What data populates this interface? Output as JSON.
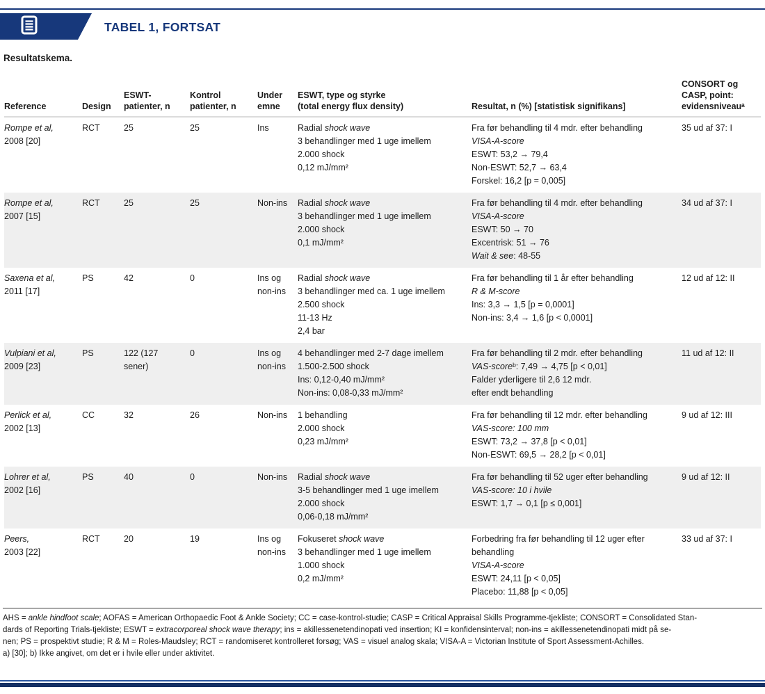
{
  "masthead": {
    "badge_label": "TABEL 1, FORTSAT",
    "badge_icon": "document-lines-icon",
    "subtitle": "Resultatskema."
  },
  "colors": {
    "brand_navy": "#17387b",
    "row_stripe": "#efefef",
    "text": "#1c1c1c"
  },
  "table": {
    "columns": [
      {
        "key": "reference",
        "label": "Reference"
      },
      {
        "key": "design",
        "label": "Design"
      },
      {
        "key": "eswt_n",
        "label": "ESWT-\npatienter, n"
      },
      {
        "key": "kontrol_n",
        "label": "Kontrol\npatienter, n"
      },
      {
        "key": "emne",
        "label": "Under\nemne"
      },
      {
        "key": "type",
        "label": "ESWT, type og styrke\n(total energy flux density)"
      },
      {
        "key": "resultat",
        "label": "Resultat, n (%) [statistisk signifikans]"
      },
      {
        "key": "consort",
        "label": "CONSORT og\nCASP, point:\nevidensniveauᵃ"
      }
    ],
    "rows": [
      {
        "reference": [
          [
            {
              "i": "Rompe et al,"
            }
          ],
          [
            "2008 [20]"
          ]
        ],
        "design": [
          [
            "RCT"
          ]
        ],
        "eswt_n": [
          [
            "25"
          ]
        ],
        "kontrol_n": [
          [
            "25"
          ]
        ],
        "emne": [
          [
            "Ins"
          ]
        ],
        "type": [
          [
            "Radial ",
            {
              "i": "shock wave"
            }
          ],
          [
            "3 behandlinger med 1 uge imellem"
          ],
          [
            "2.000 shock"
          ],
          [
            "0,12 mJ/mm²"
          ]
        ],
        "resultat": [
          [
            "Fra før behandling til 4 mdr. efter behandling"
          ],
          [
            {
              "i": "VISA-A-score"
            }
          ],
          [
            "ESWT: 53,2 → 79,4"
          ],
          [
            "Non-ESWT: 52,7 → 63,4"
          ],
          [
            "Forskel: 16,2 [p = 0,005]"
          ]
        ],
        "consort": [
          [
            "35 ud af 37: I"
          ]
        ]
      },
      {
        "reference": [
          [
            {
              "i": "Rompe et al,"
            }
          ],
          [
            "2007 [15]"
          ]
        ],
        "design": [
          [
            "RCT"
          ]
        ],
        "eswt_n": [
          [
            "25"
          ]
        ],
        "kontrol_n": [
          [
            "25"
          ]
        ],
        "emne": [
          [
            "Non-ins"
          ]
        ],
        "type": [
          [
            "Radial ",
            {
              "i": "shock wave"
            }
          ],
          [
            "3 behandlinger med 1 uge imellem"
          ],
          [
            "2.000 shock"
          ],
          [
            "0,1 mJ/mm²"
          ]
        ],
        "resultat": [
          [
            "Fra før behandling til 4 mdr. efter behandling"
          ],
          [
            {
              "i": "VISA-A-score"
            }
          ],
          [
            "ESWT: 50 → 70"
          ],
          [
            "Excentrisk: 51 → 76"
          ],
          [
            {
              "i": "Wait & see"
            },
            ": 48-55"
          ]
        ],
        "consort": [
          [
            "34 ud af 37: I"
          ]
        ]
      },
      {
        "reference": [
          [
            {
              "i": "Saxena et al,"
            }
          ],
          [
            "2011 [17]"
          ]
        ],
        "design": [
          [
            "PS"
          ]
        ],
        "eswt_n": [
          [
            "42"
          ]
        ],
        "kontrol_n": [
          [
            "0"
          ]
        ],
        "emne": [
          [
            "Ins og"
          ],
          [
            "non-ins"
          ]
        ],
        "type": [
          [
            "Radial ",
            {
              "i": "shock wave"
            }
          ],
          [
            "3 behandlinger med ca. 1 uge imellem"
          ],
          [
            "2.500 shock"
          ],
          [
            "11-13 Hz"
          ],
          [
            "2,4 bar"
          ]
        ],
        "resultat": [
          [
            "Fra før behandling til 1 år efter behandling"
          ],
          [
            {
              "i": "R & M-score"
            }
          ],
          [
            "Ins: 3,3 → 1,5 [p = 0,0001]"
          ],
          [
            "Non-ins: 3,4 → 1,6 [p < 0,0001]"
          ]
        ],
        "consort": [
          [
            "12 ud af 12: II"
          ]
        ]
      },
      {
        "reference": [
          [
            {
              "i": "Vulpiani et al,"
            }
          ],
          [
            "2009 [23]"
          ]
        ],
        "design": [
          [
            "PS"
          ]
        ],
        "eswt_n": [
          [
            "122 (127"
          ],
          [
            "sener)"
          ]
        ],
        "kontrol_n": [
          [
            "0"
          ]
        ],
        "emne": [
          [
            "Ins og"
          ],
          [
            "non-ins"
          ]
        ],
        "type": [
          [
            "4 behandlinger med 2-7 dage imellem"
          ],
          [
            "1.500-2.500 shock"
          ],
          [
            "Ins: 0,12-0,40 mJ/mm²"
          ],
          [
            "Non-ins: 0,08-0,33 mJ/mm²"
          ]
        ],
        "resultat": [
          [
            "Fra før behandling til 2 mdr. efter behandling"
          ],
          [
            {
              "i": "VAS-score"
            },
            "ᵇ: 7,49 → 4,75 [p < 0,01]"
          ],
          [
            "Falder yderligere til 2,6 12 mdr."
          ],
          [
            "efter endt behandling"
          ]
        ],
        "consort": [
          [
            "11 ud af 12: II"
          ]
        ]
      },
      {
        "reference": [
          [
            {
              "i": "Perlick et al,"
            }
          ],
          [
            "2002 [13]"
          ]
        ],
        "design": [
          [
            "CC"
          ]
        ],
        "eswt_n": [
          [
            "32"
          ]
        ],
        "kontrol_n": [
          [
            "26"
          ]
        ],
        "emne": [
          [
            "Non-ins"
          ]
        ],
        "type": [
          [
            "1 behandling"
          ],
          [
            "2.000 shock"
          ],
          [
            "0,23 mJ/mm²"
          ]
        ],
        "resultat": [
          [
            "Fra før behandling til 12 mdr. efter behandling"
          ],
          [
            {
              "i": "VAS-score: 100 mm"
            }
          ],
          [
            "ESWT: 73,2 → 37,8 [p < 0,01]"
          ],
          [
            "Non-ESWT: 69,5 → 28,2 [p < 0,01]"
          ]
        ],
        "consort": [
          [
            "9 ud af 12: III"
          ]
        ]
      },
      {
        "reference": [
          [
            {
              "i": "Lohrer et al,"
            }
          ],
          [
            "2002 [16]"
          ]
        ],
        "design": [
          [
            "PS"
          ]
        ],
        "eswt_n": [
          [
            "40"
          ]
        ],
        "kontrol_n": [
          [
            "0"
          ]
        ],
        "emne": [
          [
            "Non-ins"
          ]
        ],
        "type": [
          [
            "Radial ",
            {
              "i": "shock wave"
            }
          ],
          [
            "3-5 behandlinger med 1 uge imellem"
          ],
          [
            "2.000 shock"
          ],
          [
            "0,06-0,18 mJ/mm²"
          ]
        ],
        "resultat": [
          [
            "Fra før behandling til 52 uger efter behandling"
          ],
          [
            {
              "i": "VAS-score: 10 i hvile"
            }
          ],
          [
            "ESWT: 1,7 → 0,1 [p ≤ 0,001]"
          ]
        ],
        "consort": [
          [
            "9 ud af 12: II"
          ]
        ]
      },
      {
        "reference": [
          [
            {
              "i": "Peers,"
            }
          ],
          [
            "2003 [22]"
          ]
        ],
        "design": [
          [
            "RCT"
          ]
        ],
        "eswt_n": [
          [
            "20"
          ]
        ],
        "kontrol_n": [
          [
            "19"
          ]
        ],
        "emne": [
          [
            "Ins og"
          ],
          [
            "non-ins"
          ]
        ],
        "type": [
          [
            "Fokuseret ",
            {
              "i": "shock wave"
            }
          ],
          [
            "3 behandlinger med 1 uge imellem"
          ],
          [
            "1.000 shock"
          ],
          [
            "0,2 mJ/mm²"
          ]
        ],
        "resultat": [
          [
            "Forbedring fra før behandling til 12 uger efter"
          ],
          [
            "behandling"
          ],
          [
            {
              "i": "VISA-A-score"
            }
          ],
          [
            "ESWT: 24,11 [p < 0,05]"
          ],
          [
            "Placebo: 11,88 [p < 0,05]"
          ]
        ],
        "consort": [
          [
            "33 ud af 37: I"
          ]
        ]
      }
    ]
  },
  "footnotes": {
    "lines": [
      [
        "AHS = ",
        {
          "i": "ankle hindfoot scale"
        },
        "; AOFAS = American Orthopaedic Foot & Ankle Society; CC = case-kontrol-studie; CASP = Critical Appraisal Skills Programme-tjekliste; CONSORT = Consolidated Stan-"
      ],
      [
        "dards of Reporting Trials-tjekliste; ESWT = ",
        {
          "i": "extracorporeal shock wave therapy"
        },
        "; ins = akillessenetendinopati ved insertion; KI = konfidensinterval; non-ins = akillessenetendinopati midt på se-"
      ],
      [
        "nen; PS = prospektivt studie; R & M = Roles-Maudsley; RCT = randomiseret kontrolleret forsøg; VAS = visuel analog skala; VISA-A = Victorian Institute of Sport Assessment-Achilles."
      ],
      [
        "a) [30];  b) Ikke angivet, om det er i hvile eller under aktivitet."
      ]
    ]
  }
}
